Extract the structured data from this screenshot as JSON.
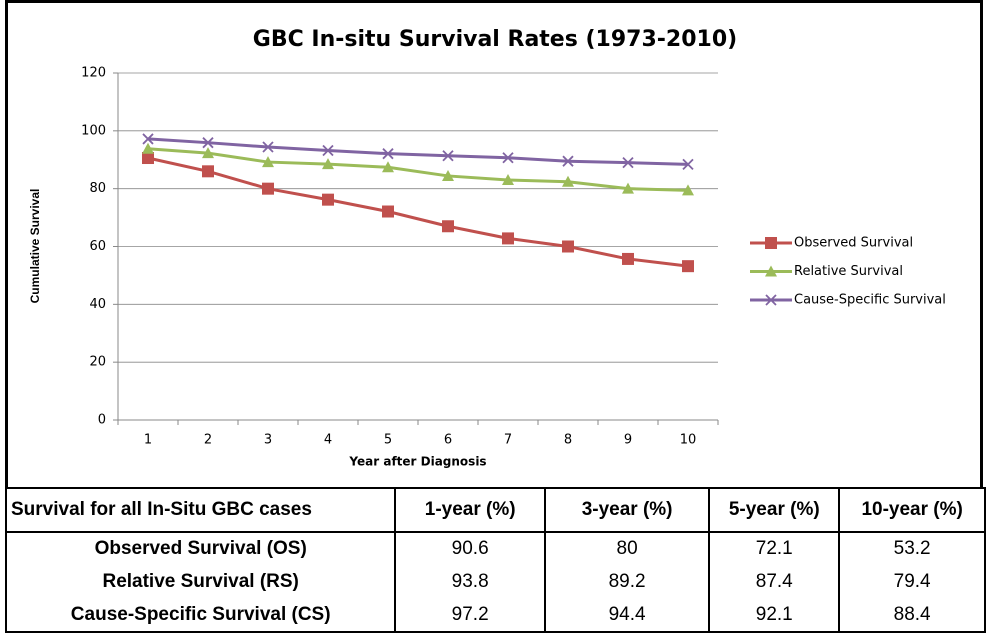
{
  "chart_data": {
    "type": "line",
    "title": "GBC In-situ Survival Rates (1973-2010)",
    "x_label": "Year after Diagnosis",
    "y_label": "Cumulative Survival",
    "categories": [
      "1",
      "2",
      "3",
      "4",
      "5",
      "6",
      "7",
      "8",
      "9",
      "10"
    ],
    "series": [
      {
        "name": "Observed Survival",
        "color": "#c0504d",
        "marker": "square",
        "values": [
          90.6,
          86,
          80,
          76.2,
          72.1,
          67,
          62.8,
          60,
          55.7,
          53.2
        ]
      },
      {
        "name": "Relative Survival",
        "color": "#9bbb59",
        "marker": "triangle",
        "values": [
          93.8,
          92.3,
          89.2,
          88.5,
          87.4,
          84.4,
          83,
          82.4,
          80,
          79.4
        ]
      },
      {
        "name": "Cause-Specific Survival",
        "color": "#8064a2",
        "marker": "x",
        "values": [
          97.2,
          95.9,
          94.4,
          93.2,
          92.1,
          91.4,
          90.7,
          89.5,
          89,
          88.4
        ]
      }
    ],
    "ylim": [
      0,
      120
    ],
    "yticks": [
      0,
      20,
      40,
      60,
      80,
      100,
      120
    ],
    "grid": true,
    "legend": "right"
  },
  "table": {
    "header": [
      "Survival for all In-Situ GBC cases",
      "1-year (%)",
      "3-year (%)",
      "5-year (%)",
      "10-year (%)"
    ],
    "rows": [
      [
        "Observed Survival (OS)",
        90.6,
        80,
        72.1,
        53.2
      ],
      [
        "Relative Survival (RS)",
        93.8,
        89.2,
        87.4,
        79.4
      ],
      [
        "Cause-Specific Survival (CS)",
        97.2,
        94.4,
        92.1,
        88.4
      ]
    ]
  }
}
